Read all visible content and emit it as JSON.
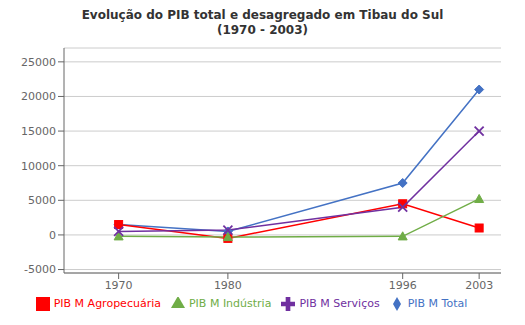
{
  "chart_data": {
    "type": "line",
    "title": "Evolução do PIB total e desagregado em Tibau do Sul\n(1970 - 2003)",
    "x": [
      1970,
      1980,
      1996,
      2003
    ],
    "series": [
      {
        "name": "PIB M Total",
        "color": "#4472C4",
        "marker": "diamond",
        "values": [
          1500,
          500,
          7500,
          21000
        ]
      },
      {
        "name": "PIB M Agropecuária",
        "color": "#FF0000",
        "marker": "square",
        "values": [
          1500,
          -500,
          4500,
          1000
        ]
      },
      {
        "name": "PIB M Indústria",
        "color": "#70AD47",
        "marker": "triangle",
        "values": [
          -200,
          -300,
          -200,
          5200
        ]
      },
      {
        "name": "PIB M Serviços",
        "color": "#7030A0",
        "marker": "cross",
        "values": [
          500,
          700,
          4000,
          15000
        ]
      }
    ],
    "xlim": [
      1965,
      2005
    ],
    "xticks": [
      1970,
      1980,
      1996,
      2003
    ],
    "ylim": [
      -5500,
      27000
    ],
    "yticks": [
      -5000,
      0,
      5000,
      10000,
      15000,
      20000,
      25000
    ],
    "grid": true,
    "legend": "bottom"
  }
}
